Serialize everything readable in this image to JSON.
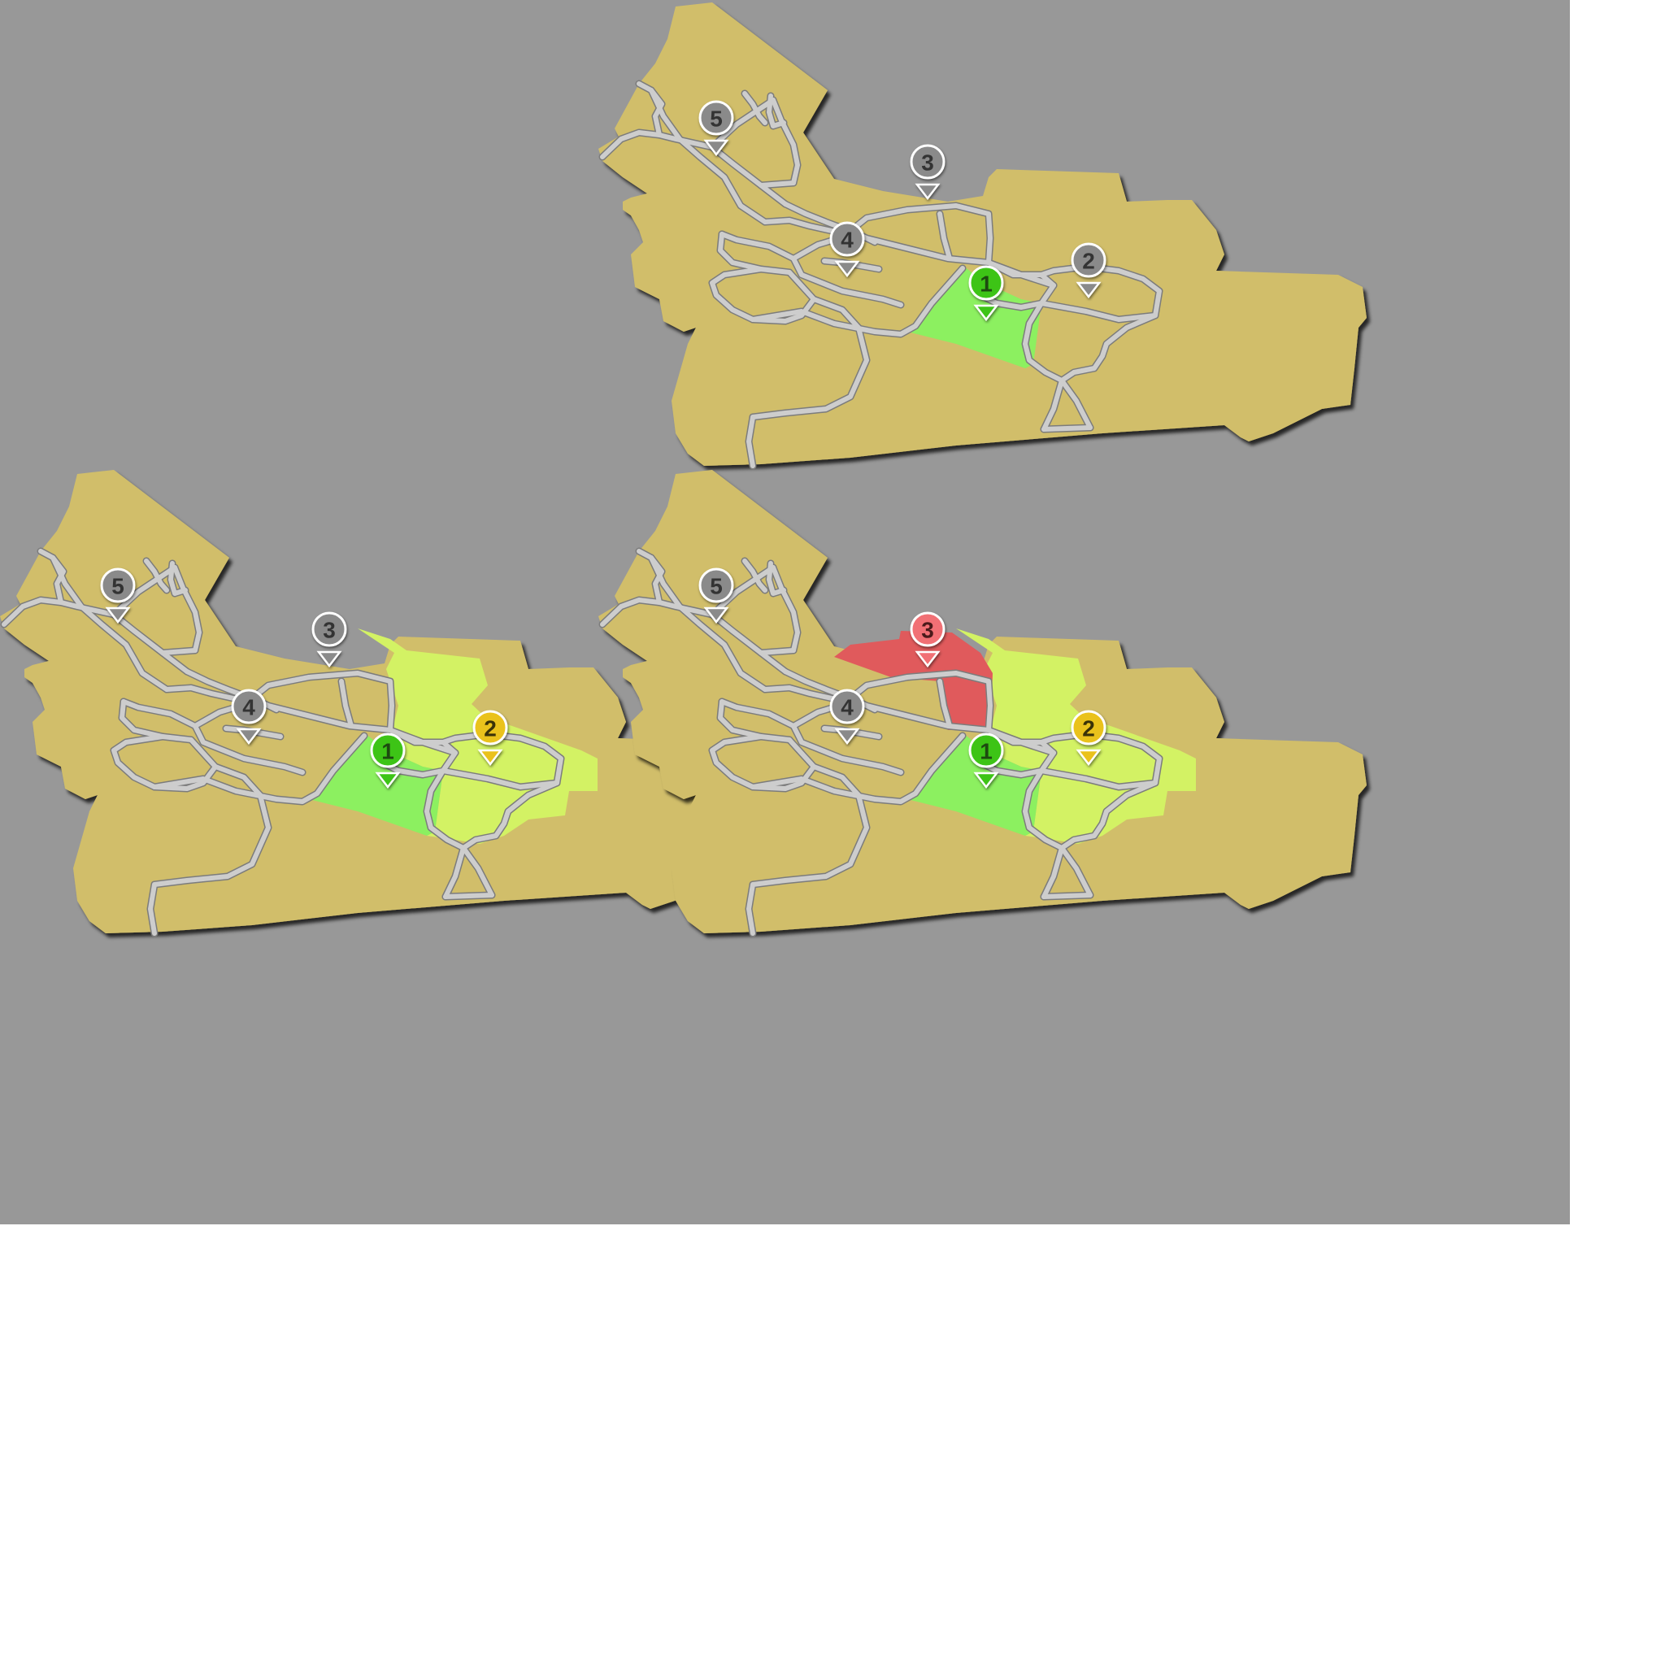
{
  "colors": {
    "background": "#989898",
    "page": "#ffffff",
    "land": "#d1be6a",
    "road": "#cdcdcd",
    "road_edge": "#7c7c7c",
    "green": "#8cf060",
    "yellow_green": "#d3f264",
    "red": "#e05a5c",
    "pin_gray": "#8a8a8a",
    "pin_green": "#3ec417",
    "pin_yellow": "#eac21b",
    "pin_red": "#f17074"
  },
  "panels": [
    {
      "name": "map-panel-top-right",
      "zones": [
        "green-1"
      ],
      "pins": [
        {
          "label": "1",
          "state": "green"
        },
        {
          "label": "2",
          "state": "gray"
        },
        {
          "label": "3",
          "state": "gray"
        },
        {
          "label": "4",
          "state": "gray"
        },
        {
          "label": "5",
          "state": "gray"
        }
      ]
    },
    {
      "name": "map-panel-bottom-left",
      "zones": [
        "yellow-2",
        "green-1"
      ],
      "pins": [
        {
          "label": "1",
          "state": "green"
        },
        {
          "label": "2",
          "state": "yellow"
        },
        {
          "label": "3",
          "state": "gray"
        },
        {
          "label": "4",
          "state": "gray"
        },
        {
          "label": "5",
          "state": "gray"
        }
      ]
    },
    {
      "name": "map-panel-bottom-right",
      "zones": [
        "yellow-2",
        "green-1",
        "red-3"
      ],
      "pins": [
        {
          "label": "1",
          "state": "green"
        },
        {
          "label": "2",
          "state": "yellow"
        },
        {
          "label": "3",
          "state": "red"
        },
        {
          "label": "4",
          "state": "gray"
        },
        {
          "label": "5",
          "state": "gray"
        }
      ]
    }
  ]
}
